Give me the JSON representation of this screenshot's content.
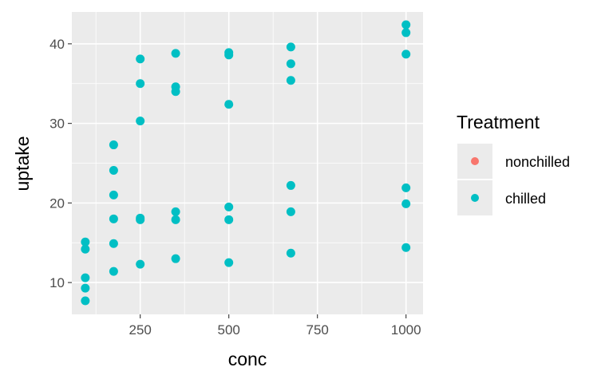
{
  "chart_data": {
    "type": "scatter",
    "xlabel": "conc",
    "ylabel": "uptake",
    "xlim": [
      57,
      1048
    ],
    "ylim": [
      6,
      44
    ],
    "x_ticks": [
      250,
      500,
      750,
      1000
    ],
    "x_minor_ticks": [
      125,
      375,
      625,
      875
    ],
    "y_ticks": [
      10,
      20,
      30,
      40
    ],
    "y_minor_ticks": [
      15,
      25,
      35
    ],
    "grid": true,
    "legend": {
      "title": "Treatment",
      "position": "right",
      "entries": [
        {
          "label": "nonchilled",
          "color": "#F8766D"
        },
        {
          "label": "chilled",
          "color": "#00BFC4"
        }
      ]
    },
    "series": [
      {
        "color": "#00BFC4",
        "points": [
          [
            95,
            15.1
          ],
          [
            95,
            14.2
          ],
          [
            95,
            10.6
          ],
          [
            95,
            9.3
          ],
          [
            95,
            7.7
          ],
          [
            175,
            27.3
          ],
          [
            175,
            24.1
          ],
          [
            175,
            21.0
          ],
          [
            175,
            18.0
          ],
          [
            175,
            14.9
          ],
          [
            175,
            11.4
          ],
          [
            250,
            38.1
          ],
          [
            250,
            35.0
          ],
          [
            250,
            30.3
          ],
          [
            250,
            18.1
          ],
          [
            250,
            17.9
          ],
          [
            250,
            12.3
          ],
          [
            350,
            38.8
          ],
          [
            350,
            34.6
          ],
          [
            350,
            34.0
          ],
          [
            350,
            18.9
          ],
          [
            350,
            17.9
          ],
          [
            350,
            13.0
          ],
          [
            500,
            38.9
          ],
          [
            500,
            38.6
          ],
          [
            500,
            32.4
          ],
          [
            500,
            19.5
          ],
          [
            500,
            17.9
          ],
          [
            500,
            12.5
          ],
          [
            675,
            39.6
          ],
          [
            675,
            37.5
          ],
          [
            675,
            35.4
          ],
          [
            675,
            22.2
          ],
          [
            675,
            18.9
          ],
          [
            675,
            13.7
          ],
          [
            1000,
            42.4
          ],
          [
            1000,
            41.4
          ],
          [
            1000,
            38.7
          ],
          [
            1000,
            21.9
          ],
          [
            1000,
            19.9
          ],
          [
            1000,
            14.4
          ]
        ]
      }
    ]
  }
}
